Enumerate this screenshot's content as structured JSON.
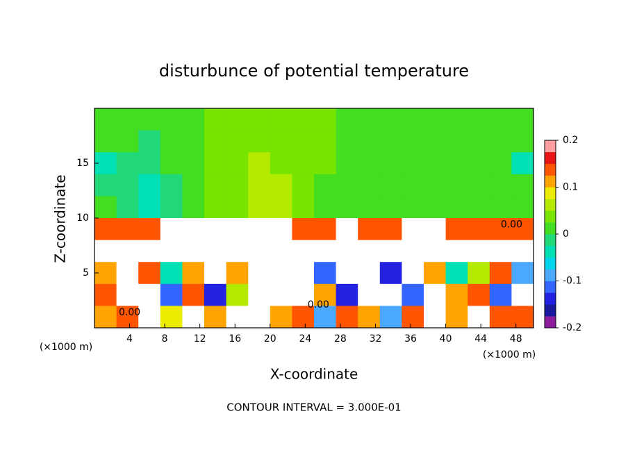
{
  "chart_data": {
    "type": "contour",
    "title": "disturbunce of potential temperature",
    "x_label": "X-coordinate",
    "y_label": "Z-coordinate",
    "x_unit_left": "(×1000 m)",
    "x_unit_right": "(×1000 m)",
    "footer": "CONTOUR INTERVAL = 3.000E-01",
    "xlim": [
      0,
      50
    ],
    "ylim": [
      0,
      20
    ],
    "xticks": [
      4,
      8,
      12,
      16,
      20,
      24,
      28,
      32,
      36,
      40,
      44,
      48
    ],
    "yticks": [
      5,
      10,
      15
    ],
    "x": [
      1.25,
      3.75,
      6.25,
      8.75,
      11.25,
      13.75,
      16.25,
      18.75,
      21.25,
      23.75,
      26.25,
      28.75,
      31.25,
      33.75,
      36.25,
      38.75,
      41.25,
      43.75,
      46.25,
      48.75
    ],
    "y": [
      19,
      17,
      15,
      13,
      11,
      9,
      7,
      5,
      3,
      1
    ],
    "z": [
      [
        0.01,
        0.01,
        0.01,
        0.01,
        0.02,
        0.03,
        0.03,
        0.03,
        0.03,
        0.03,
        0.03,
        0.02,
        0.01,
        0.01,
        0.01,
        0.01,
        0.01,
        0.01,
        0.01,
        0.01
      ],
      [
        0.0,
        0.0,
        -0.01,
        0.0,
        0.02,
        0.03,
        0.03,
        0.04,
        0.04,
        0.03,
        0.03,
        0.02,
        0.01,
        0.01,
        0.01,
        0.01,
        0.01,
        0.01,
        0.01,
        0.0
      ],
      [
        -0.04,
        -0.02,
        -0.02,
        0.0,
        0.02,
        0.03,
        0.04,
        0.05,
        0.04,
        0.03,
        0.03,
        0.02,
        0.01,
        0.01,
        0.01,
        0.01,
        0.01,
        0.01,
        0.0,
        -0.03
      ],
      [
        -0.01,
        -0.02,
        -0.03,
        -0.01,
        0.02,
        0.03,
        0.04,
        0.05,
        0.05,
        0.03,
        0.02,
        0.02,
        0.01,
        0.01,
        0.01,
        0.01,
        0.01,
        0.01,
        0.01,
        0.0
      ],
      [
        0.0,
        -0.02,
        -0.04,
        -0.02,
        0.02,
        0.03,
        0.04,
        0.06,
        0.05,
        0.03,
        0.02,
        0.02,
        0.01,
        0.01,
        0.01,
        0.01,
        0.01,
        0.01,
        0.01,
        0.01
      ],
      [
        0.15,
        0.15,
        0.15,
        0.25,
        0.25,
        0.3,
        0.3,
        0.25,
        0.25,
        0.15,
        0.15,
        0.25,
        0.15,
        0.15,
        0.25,
        0.25,
        0.15,
        0.15,
        0.15,
        0.15
      ],
      [
        0.3,
        0.3,
        0.3,
        0.3,
        0.3,
        0.3,
        0.3,
        0.3,
        0.3,
        0.3,
        0.3,
        0.3,
        0.3,
        0.3,
        0.3,
        0.3,
        0.3,
        0.3,
        0.3,
        0.3
      ],
      [
        0.1,
        0.3,
        0.15,
        -0.05,
        0.12,
        0.3,
        0.1,
        0.3,
        0.3,
        0.3,
        -0.12,
        0.3,
        0.3,
        -0.15,
        -0.3,
        0.12,
        -0.05,
        0.05,
        0.15,
        -0.1
      ],
      [
        0.15,
        0.3,
        0.3,
        -0.12,
        0.15,
        -0.15,
        0.05,
        0.3,
        0.3,
        0.3,
        0.12,
        -0.15,
        0.3,
        0.3,
        -0.12,
        -0.3,
        0.1,
        0.15,
        -0.12,
        0.3
      ],
      [
        0.12,
        0.15,
        0.3,
        0.08,
        0.3,
        0.12,
        0.3,
        0.3,
        0.1,
        0.15,
        -0.08,
        0.15,
        0.1,
        -0.1,
        0.15,
        -0.3,
        0.12,
        0.3,
        0.15,
        0.15
      ]
    ],
    "colorbar": {
      "lim": [
        -0.2,
        0.2
      ],
      "ticks": [
        -0.2,
        -0.1,
        0,
        0.1,
        0.2
      ],
      "colors": [
        "#8c1c9c",
        "#1a1aa0",
        "#2222e0",
        "#3366ff",
        "#4aa8ff",
        "#00d4ec",
        "#00e0b4",
        "#20d878",
        "#44dd22",
        "#77e400",
        "#b4ea00",
        "#ecec00",
        "#ffa400",
        "#ff5400",
        "#e81414",
        "#ffa0a0"
      ],
      "out_of_range_color": "#ffffff"
    },
    "contour_labels": [
      {
        "text": "0.00",
        "x": 4,
        "z": 1.4
      },
      {
        "text": "0.00",
        "x": 25.5,
        "z": 2.1
      },
      {
        "text": "0.00",
        "x": 47.5,
        "z": 9.4
      }
    ]
  }
}
